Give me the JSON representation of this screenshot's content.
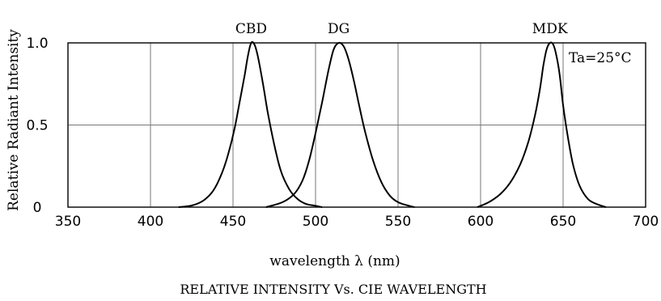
{
  "chart_data": {
    "type": "line",
    "title": "RELATIVE INTENSITY Vs. CIE WAVELENGTH",
    "xlabel": "wavelength λ (nm)",
    "ylabel": "Relative Radiant Intensity",
    "annotation": "Ta=25°C",
    "xlim": [
      350,
      700
    ],
    "ylim": [
      0,
      1.0
    ],
    "grid": true,
    "x_ticks": [
      "350",
      "400",
      "450",
      "500",
      "550",
      "600",
      "650",
      "700"
    ],
    "y_ticks": [
      "0",
      "0.5",
      "1.0"
    ],
    "series": [
      {
        "name": "CBD",
        "x": [
          417,
          425,
          432,
          438,
          443,
          447,
          451,
          454,
          457,
          459,
          461,
          463,
          465,
          468,
          471,
          475,
          479,
          484,
          489,
          494,
          499,
          504
        ],
        "y": [
          0.0,
          0.01,
          0.04,
          0.1,
          0.2,
          0.32,
          0.48,
          0.64,
          0.8,
          0.92,
          1.0,
          0.99,
          0.92,
          0.76,
          0.58,
          0.38,
          0.22,
          0.11,
          0.05,
          0.02,
          0.01,
          0.0
        ]
      },
      {
        "name": "DG",
        "x": [
          470,
          480,
          487,
          492,
          496,
          500,
          504,
          508,
          511,
          514,
          517,
          520,
          523,
          526,
          530,
          535,
          540,
          545,
          550,
          556,
          560
        ],
        "y": [
          0.0,
          0.03,
          0.08,
          0.16,
          0.28,
          0.45,
          0.64,
          0.84,
          0.96,
          1.0,
          0.98,
          0.9,
          0.78,
          0.64,
          0.46,
          0.28,
          0.15,
          0.07,
          0.03,
          0.01,
          0.0
        ]
      },
      {
        "name": "MDK",
        "x": [
          598,
          605,
          612,
          618,
          624,
          629,
          633,
          636,
          638,
          640,
          642,
          644,
          646,
          648,
          650,
          653,
          656,
          660,
          665,
          670,
          676
        ],
        "y": [
          0.0,
          0.03,
          0.08,
          0.15,
          0.26,
          0.4,
          0.56,
          0.72,
          0.86,
          0.96,
          1.0,
          0.99,
          0.92,
          0.8,
          0.62,
          0.42,
          0.26,
          0.13,
          0.05,
          0.02,
          0.0
        ]
      }
    ]
  }
}
